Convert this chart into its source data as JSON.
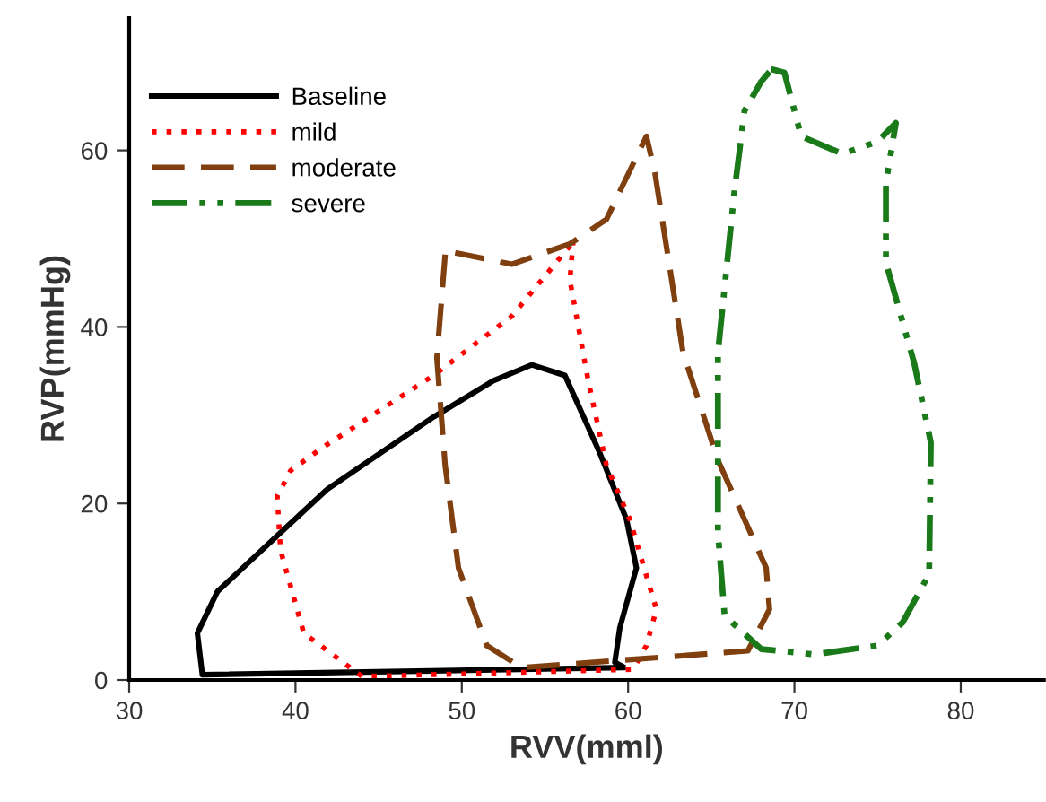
{
  "chart_data": {
    "type": "line",
    "xlabel": "RVV(mml)",
    "ylabel": "RVP(mmHg)",
    "xlim": [
      30,
      85
    ],
    "ylim": [
      0,
      75
    ],
    "xticks": [
      30,
      40,
      50,
      60,
      70,
      80
    ],
    "yticks": [
      0,
      20,
      40,
      60
    ],
    "legend": "top left",
    "grid": false,
    "marker": "none",
    "series": [
      {
        "name": "Baseline",
        "color": "#000000",
        "line_style": "solid",
        "x": [
          59.7,
          34.4,
          34.1,
          35.3,
          39.1,
          41.9,
          48.3,
          51.9,
          54.2,
          56.2,
          58.3,
          59.9,
          60.5,
          59.5,
          59.2,
          59.6
        ],
        "values": [
          1.4,
          0.6,
          5.3,
          10,
          16.7,
          21.6,
          29.8,
          33.9,
          35.7,
          34.5,
          25.7,
          18.2,
          12.7,
          5.9,
          2,
          1.6
        ]
      },
      {
        "name": "mild",
        "color": "#ff0000",
        "line_style": "dotted",
        "x": [
          56.7,
          56.5,
          57.6,
          58.7,
          60.1,
          61.7,
          61.1,
          60.3,
          44,
          40.5,
          39.1,
          38.9,
          39.7,
          41.6,
          48.3,
          53,
          56.6
        ],
        "values": [
          49.8,
          45.3,
          33.9,
          24.3,
          18.2,
          8,
          3.9,
          1.2,
          0.4,
          5.3,
          14.7,
          20.8,
          23.7,
          26.3,
          34.5,
          41.2,
          49.4
        ]
      },
      {
        "name": "moderate",
        "color": "#7f3f0f",
        "line_style": "dashed",
        "x": [
          49,
          48.5,
          49,
          49.8,
          51.5,
          53.6,
          67.2,
          68.5,
          68.3,
          65.4,
          63.3,
          61.6,
          61.1,
          58.7,
          56.5,
          53,
          51.2,
          49.6
        ],
        "values": [
          48.2,
          36.5,
          24.3,
          12.7,
          3.9,
          1.4,
          3.3,
          8,
          12.7,
          24.9,
          37.1,
          57.6,
          61.6,
          52.2,
          49.4,
          47.1,
          47.8,
          48.4
        ]
      },
      {
        "name": "severe",
        "color": "#1a7a1a",
        "line_style": "dashdotdot",
        "x": [
          68.6,
          69.4,
          70.4,
          72.9,
          75,
          76.1,
          75.5,
          75.5,
          77.2,
          78.2,
          78.1,
          76.5,
          75,
          71.2,
          68,
          65.8,
          65.4,
          65.4,
          66.4,
          67,
          68,
          68.5
        ],
        "values": [
          69.2,
          68.8,
          61.6,
          59.6,
          61,
          63.1,
          56.3,
          47.3,
          35.9,
          26.9,
          12,
          6.5,
          3.9,
          2.9,
          3.5,
          7.3,
          16.7,
          37.1,
          55.5,
          64.5,
          67.8,
          68.9
        ]
      }
    ]
  }
}
